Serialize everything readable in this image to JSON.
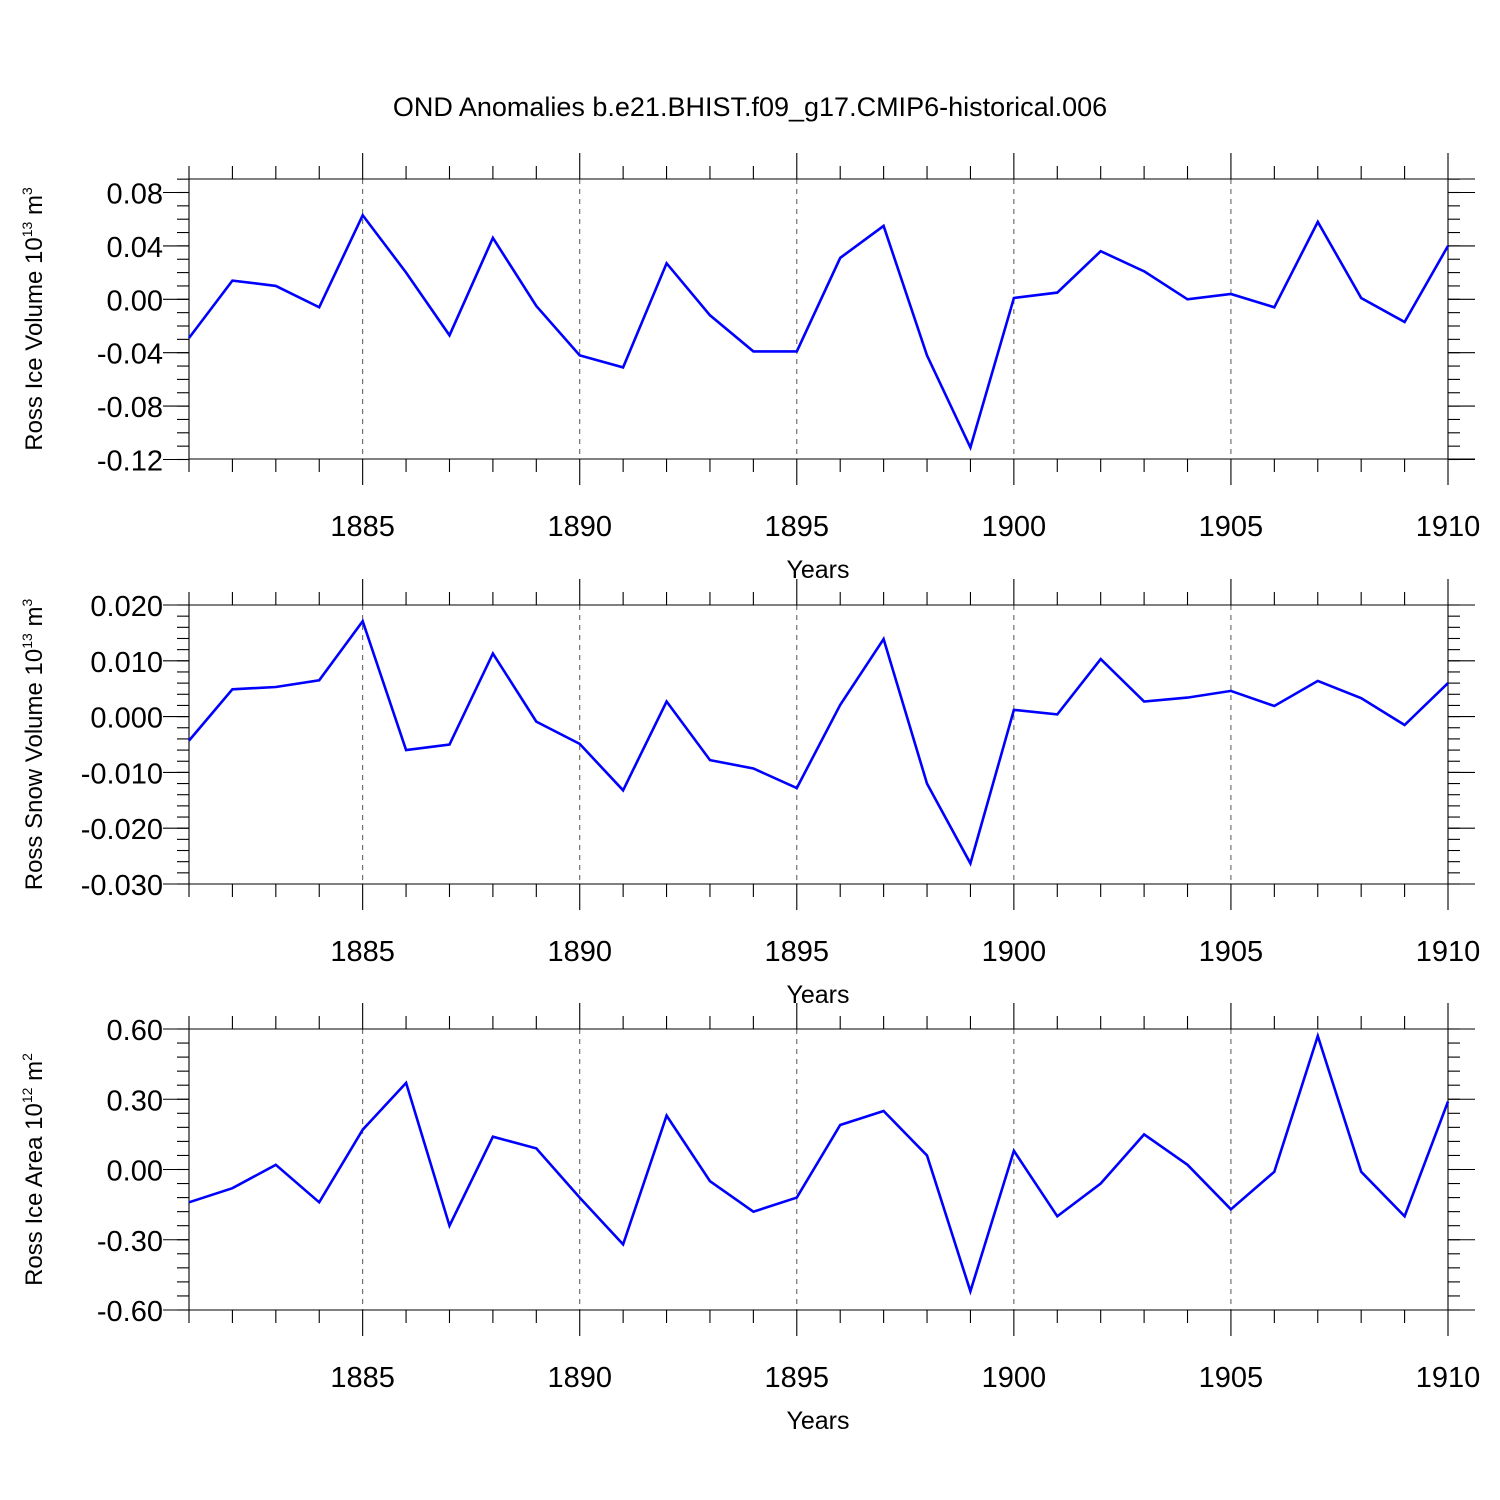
{
  "title": "OND Anomalies b.e21.BHIST.f09_g17.CMIP6-historical.006",
  "chart_data": [
    {
      "type": "line",
      "ylabel": {
        "text": "Ross Ice Volume 10",
        "exp": "13",
        "unit": " m",
        "unit_exp": "3"
      },
      "xlabel": "Years",
      "xlim": [
        1881,
        1910
      ],
      "ylim": [
        -0.12,
        0.09
      ],
      "yticks": [
        0.08,
        0.04,
        0.0,
        -0.04,
        -0.08,
        -0.12
      ],
      "ytick_labels": [
        "0.08",
        "0.04",
        "0.00",
        "-0.04",
        "-0.08",
        "-0.12"
      ],
      "yminor_step": 0.01,
      "xticks": [
        1885,
        1890,
        1895,
        1900,
        1905,
        1910
      ],
      "xtick_labels": [
        "1885",
        "1890",
        "1895",
        "1900",
        "1905",
        "1910"
      ],
      "vgrid": true,
      "color": "#0000ff",
      "x": [
        1881,
        1882,
        1883,
        1884,
        1885,
        1886,
        1887,
        1888,
        1889,
        1890,
        1891,
        1892,
        1893,
        1894,
        1895,
        1896,
        1897,
        1898,
        1899,
        1900,
        1901,
        1902,
        1903,
        1904,
        1905,
        1906,
        1907,
        1908,
        1909,
        1910
      ],
      "values": [
        -0.029,
        0.014,
        0.01,
        -0.006,
        0.063,
        0.02,
        -0.027,
        0.046,
        -0.005,
        -0.042,
        -0.051,
        0.027,
        -0.012,
        -0.039,
        -0.039,
        0.031,
        0.055,
        -0.042,
        -0.111,
        0.001,
        0.005,
        0.036,
        0.021,
        0.0,
        0.004,
        -0.006,
        0.058,
        0.001,
        -0.017,
        0.04
      ]
    },
    {
      "type": "line",
      "ylabel": {
        "text": "Ross Snow Volume 10",
        "exp": "13",
        "unit": " m",
        "unit_exp": "3"
      },
      "xlabel": "Years",
      "xlim": [
        1881,
        1910
      ],
      "ylim": [
        -0.03,
        0.02
      ],
      "yticks": [
        0.02,
        0.01,
        0.0,
        -0.01,
        -0.02,
        -0.03
      ],
      "ytick_labels": [
        "0.020",
        "0.010",
        "0.000",
        "-0.010",
        "-0.020",
        "-0.030"
      ],
      "yminor_step": 0.002,
      "xticks": [
        1885,
        1890,
        1895,
        1900,
        1905,
        1910
      ],
      "xtick_labels": [
        "1885",
        "1890",
        "1895",
        "1900",
        "1905",
        "1910"
      ],
      "vgrid": true,
      "color": "#0000ff",
      "x": [
        1881,
        1882,
        1883,
        1884,
        1885,
        1886,
        1887,
        1888,
        1889,
        1890,
        1891,
        1892,
        1893,
        1894,
        1895,
        1896,
        1897,
        1898,
        1899,
        1900,
        1901,
        1902,
        1903,
        1904,
        1905,
        1906,
        1907,
        1908,
        1909,
        1910
      ],
      "values": [
        -0.0043,
        0.0049,
        0.0053,
        0.0065,
        0.0171,
        -0.006,
        -0.005,
        0.0113,
        -0.0009,
        -0.0049,
        -0.0132,
        0.0027,
        -0.0078,
        -0.0093,
        -0.0128,
        0.0021,
        0.0139,
        -0.012,
        -0.0263,
        0.0012,
        0.0004,
        0.0103,
        0.0027,
        0.0034,
        0.0046,
        0.0019,
        0.0064,
        0.0033,
        -0.0015,
        0.006
      ]
    },
    {
      "type": "line",
      "ylabel": {
        "text": "Ross Ice Area 10",
        "exp": "12",
        "unit": " m",
        "unit_exp": "2"
      },
      "xlabel": "Years",
      "xlim": [
        1881,
        1910
      ],
      "ylim": [
        -0.6,
        0.6
      ],
      "yticks": [
        0.6,
        0.3,
        0.0,
        -0.3,
        -0.6
      ],
      "ytick_labels": [
        "0.60",
        "0.30",
        "0.00",
        "-0.30",
        "-0.60"
      ],
      "yminor_step": 0.06,
      "xticks": [
        1885,
        1890,
        1895,
        1900,
        1905,
        1910
      ],
      "xtick_labels": [
        "1885",
        "1890",
        "1895",
        "1900",
        "1905",
        "1910"
      ],
      "vgrid": true,
      "color": "#0000ff",
      "x": [
        1881,
        1882,
        1883,
        1884,
        1885,
        1886,
        1887,
        1888,
        1889,
        1890,
        1891,
        1892,
        1893,
        1894,
        1895,
        1896,
        1897,
        1898,
        1899,
        1900,
        1901,
        1902,
        1903,
        1904,
        1905,
        1906,
        1907,
        1908,
        1909,
        1910
      ],
      "values": [
        -0.14,
        -0.08,
        0.02,
        -0.14,
        0.17,
        0.37,
        -0.24,
        0.14,
        0.09,
        -0.12,
        -0.32,
        0.23,
        -0.05,
        -0.18,
        -0.12,
        0.19,
        0.25,
        0.06,
        -0.52,
        0.08,
        -0.2,
        -0.06,
        0.15,
        0.02,
        -0.17,
        -0.01,
        0.57,
        -0.01,
        -0.2,
        0.29
      ]
    }
  ]
}
